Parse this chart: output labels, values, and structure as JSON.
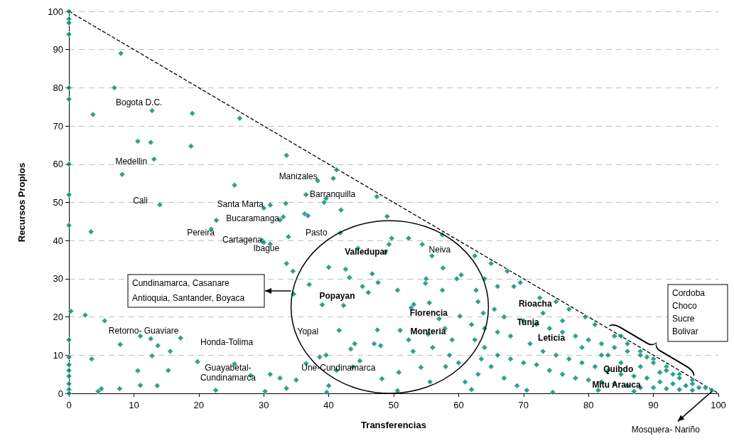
{
  "chart_data": {
    "type": "scatter",
    "xlabel": "Transferencias",
    "ylabel": "Recursos Propios",
    "xlim": [
      0,
      100
    ],
    "ylim": [
      0,
      100
    ],
    "xticks": [
      0,
      10,
      20,
      30,
      40,
      50,
      60,
      70,
      80,
      90,
      100
    ],
    "yticks": [
      0,
      10,
      20,
      30,
      40,
      50,
      60,
      70,
      80,
      90,
      100
    ],
    "grid": "y",
    "marker": "diamond",
    "series": [
      {
        "color": "#008080",
        "x": [
          0,
          0,
          0,
          0,
          0,
          0,
          0,
          0,
          0,
          0.3,
          0,
          0,
          0,
          0,
          0,
          0,
          0,
          0,
          8,
          7,
          3.7,
          12.8,
          19,
          26.3,
          10.6,
          12.6,
          18.8,
          13.1,
          8.2,
          25.5,
          33.5,
          41.2,
          38.3,
          40.7,
          36.5,
          47.4,
          14,
          3.4,
          39.6,
          39.3,
          41.9,
          30,
          31,
          33.4,
          33,
          36.3,
          36.8,
          32.5,
          22.7,
          21.9,
          29.8,
          30,
          31,
          33.8,
          49,
          41.8,
          49.3,
          52.3,
          57.5,
          33.5,
          34.5,
          37,
          39,
          40,
          34.6,
          2.5,
          5.5,
          11,
          7.9,
          12.6,
          13.7,
          15.6,
          17.2,
          3.5,
          12.8,
          15.3,
          19.8,
          10.6,
          25.5,
          13.6,
          22.6,
          28,
          30.2,
          31,
          32.5,
          33.5,
          35,
          36.5,
          38.6,
          39.6,
          4.5,
          5,
          7.8,
          11,
          44.5,
          48.7,
          42.6,
          43.2,
          46.7,
          45.2,
          46.1,
          42.3,
          50.6,
          47.6,
          53.1,
          54.9,
          55,
          57.5,
          57.6,
          59.7,
          52.7,
          55.5,
          57,
          57.9,
          55.3,
          52.3,
          59,
          60.2,
          48,
          47,
          51,
          41.6,
          44,
          43.4,
          43.7,
          48.2,
          50.8,
          53,
          56,
          58,
          54.2,
          60,
          44.8,
          47.5,
          41.2,
          40,
          39.7,
          50.6,
          55.6,
          58.6,
          62,
          63.8,
          62.7,
          60.4,
          55.9,
          54.4,
          49.7,
          62.5,
          65,
          67.5,
          69.5,
          64,
          66,
          68.5,
          72.5,
          75,
          77,
          79.5,
          81,
          84,
          86,
          88,
          90,
          92,
          94,
          96,
          98,
          99,
          63,
          65.5,
          67,
          70,
          72,
          74,
          76,
          78,
          80,
          82,
          84,
          86,
          88,
          90,
          92,
          94,
          96,
          62.5,
          64,
          66,
          68,
          70,
          72,
          74,
          76,
          78,
          80,
          82,
          84,
          86,
          88,
          90,
          92,
          94,
          96,
          63,
          65,
          67,
          69,
          70.5,
          74.5,
          81.5,
          87,
          71,
          73,
          75,
          77,
          79,
          81,
          83,
          85,
          87,
          89,
          91,
          93,
          95,
          97,
          73,
          76,
          79,
          82,
          85,
          88,
          91,
          68,
          66,
          64,
          63.5,
          61,
          62,
          85,
          83,
          89,
          93
        ],
        "values": [
          100,
          98,
          97,
          94,
          80,
          77,
          60,
          52,
          44,
          21.5,
          14,
          9.5,
          7.5,
          6,
          4.5,
          2.5,
          1,
          0,
          89,
          80,
          73,
          74,
          73.3,
          72,
          66,
          65.7,
          64.7,
          61.3,
          57.3,
          54.5,
          62.3,
          58.5,
          55.7,
          56.3,
          52,
          51.5,
          49.4,
          42.3,
          51,
          50,
          48,
          48.5,
          49.3,
          49.7,
          46.2,
          47,
          46.5,
          45.4,
          45.3,
          43,
          40,
          39.5,
          39.1,
          41,
          46.3,
          42,
          39,
          40.6,
          41.5,
          34,
          32,
          28.5,
          23.2,
          33,
          26,
          20.5,
          19,
          15,
          12.8,
          14.3,
          12.5,
          11,
          14.5,
          9,
          9.8,
          6,
          8.3,
          5.9,
          7.7,
          2,
          0.8,
          4.7,
          0.5,
          5,
          4,
          1.3,
          3.5,
          7.8,
          9.5,
          10,
          0.5,
          1.2,
          1.2,
          2.1,
          38,
          37,
          32.5,
          30.3,
          31.3,
          28,
          26.4,
          23,
          27,
          29,
          23.3,
          28.8,
          30,
          27,
          32.8,
          30,
          22.4,
          23.7,
          19.5,
          17,
          15.5,
          14,
          14,
          20.2,
          12.5,
          13,
          16.5,
          16.5,
          13,
          11.6,
          6.9,
          3.8,
          5.5,
          11,
          12,
          7,
          6.8,
          8,
          8.5,
          16.6,
          6,
          2,
          0.3,
          0.7,
          3,
          10,
          18,
          21,
          27,
          31,
          36,
          39,
          40.6,
          36,
          34,
          32,
          29,
          30,
          28,
          28,
          25,
          24,
          22,
          20,
          18,
          15,
          13,
          11,
          9,
          7,
          5,
          3.5,
          1.5,
          0.8,
          24,
          22,
          20,
          19,
          18,
          17,
          16,
          15,
          14,
          13,
          12,
          11,
          10,
          8,
          6,
          4,
          2.5,
          14,
          12,
          10,
          9,
          8,
          7.5,
          6,
          5,
          4,
          3.5,
          3,
          2.5,
          2,
          1.5,
          1.5,
          1.2,
          1,
          0.8,
          5,
          7,
          4,
          2,
          0.8,
          0.3,
          0.8,
          0.5,
          13,
          11,
          10,
          9,
          8,
          7,
          6,
          5,
          4.5,
          4,
          3,
          2.5,
          2,
          1.5,
          21,
          19,
          12,
          10,
          8,
          7,
          5.5,
          15,
          16,
          17,
          9,
          3,
          1,
          15,
          10,
          9.5,
          5
        ]
      },
      {
        "type": "line",
        "color": "#000000",
        "line_style": "dashed",
        "marker": "none",
        "x": [
          0,
          100
        ],
        "values": [
          100,
          0
        ]
      }
    ],
    "annotations": [
      "Bogota D.C.",
      "Medellin",
      "Cali",
      "Manizales",
      "Barranquilla",
      "Santa Marta",
      "Bucaramanga",
      "Pereira",
      "Cartagena",
      "Pasto",
      "Ibague",
      "Valledupar",
      "Neiva",
      "Popayan",
      "Florencia",
      "Monteria",
      "Yopal",
      "Une-Cundinamarca",
      "Retorno- Guaviare",
      "Honda-Tolima",
      "Guayabetal-\nCundinamarca",
      "Rioacha",
      "Tunja",
      "Leticia",
      "Quibdo",
      "Mitu Arauca",
      "Cundinamarca, Casanare\nAntioquia, Santander, Boyaca",
      "Cordoba\nChoco\nSucre\nBolivar",
      "Mosquera- Nariño"
    ]
  }
}
